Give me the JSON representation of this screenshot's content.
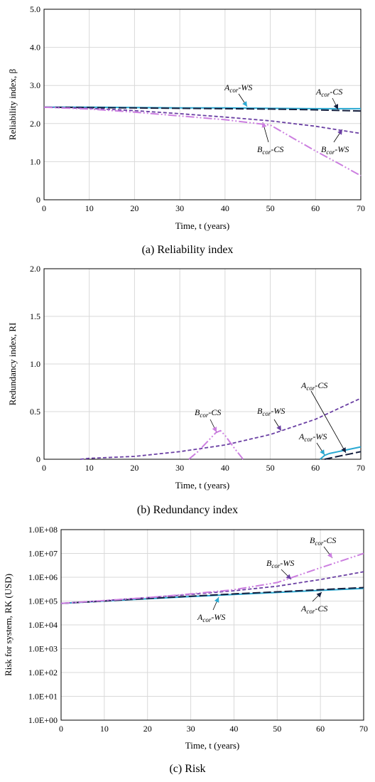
{
  "colors": {
    "A_cor_WS": "#2aa9d2",
    "A_cor_CS": "#14203f",
    "B_cor_WS": "#6a3fa3",
    "B_cor_CS": "#cc7fe0",
    "grid": "#d9d9d9",
    "axis": "#000000"
  },
  "chart_data": [
    {
      "type": "line",
      "caption": "(a) Reliability index",
      "xlabel": "Time, t (years)",
      "ylabel": "Reliability index, β",
      "xlim": [
        0,
        70
      ],
      "ylim": [
        0,
        5
      ],
      "xticks": [
        "0",
        "10",
        "20",
        "30",
        "40",
        "50",
        "60",
        "70"
      ],
      "yticks": [
        "0",
        "1.0",
        "2.0",
        "3.0",
        "4.0",
        "5.0"
      ],
      "grid": true,
      "series": [
        {
          "name": "A_cor-WS",
          "label_main": "A",
          "label_sub": "cor",
          "label_suffix": "-WS",
          "style": "solid",
          "x": [
            0,
            10,
            20,
            30,
            40,
            50,
            60,
            70
          ],
          "y": [
            2.43,
            2.43,
            2.42,
            2.41,
            2.41,
            2.4,
            2.39,
            2.39
          ]
        },
        {
          "name": "A_cor-CS",
          "label_main": "A",
          "label_sub": "cor",
          "label_suffix": "-CS",
          "style": "longdash",
          "x": [
            0,
            10,
            20,
            30,
            40,
            50,
            60,
            70
          ],
          "y": [
            2.43,
            2.42,
            2.41,
            2.4,
            2.39,
            2.38,
            2.36,
            2.33
          ]
        },
        {
          "name": "B_cor-WS",
          "label_main": "B",
          "label_sub": "cor",
          "label_suffix": "-WS",
          "style": "dash",
          "x": [
            0,
            10,
            20,
            30,
            40,
            50,
            60,
            70
          ],
          "y": [
            2.43,
            2.4,
            2.34,
            2.26,
            2.17,
            2.07,
            1.93,
            1.74
          ]
        },
        {
          "name": "B_cor-CS",
          "label_main": "B",
          "label_sub": "cor",
          "label_suffix": "-CS",
          "style": "dashdotdot",
          "x": [
            0,
            10,
            20,
            30,
            40,
            45,
            50,
            55,
            60,
            65,
            70
          ],
          "y": [
            2.43,
            2.38,
            2.3,
            2.2,
            2.1,
            2.03,
            1.96,
            1.62,
            1.28,
            0.96,
            0.63
          ]
        }
      ]
    },
    {
      "type": "line",
      "caption": "(b) Redundancy index",
      "xlabel": "Time, t (years)",
      "ylabel": "Redundancy index, RI",
      "xlim": [
        0,
        70
      ],
      "ylim": [
        0,
        2
      ],
      "xticks": [
        "0",
        "10",
        "20",
        "30",
        "40",
        "50",
        "60",
        "70"
      ],
      "yticks": [
        "0",
        "0.5",
        "1.0",
        "1.5",
        "2.0"
      ],
      "grid": true,
      "series": [
        {
          "name": "A_cor-WS",
          "label_main": "A",
          "label_sub": "cor",
          "label_suffix": "-WS",
          "style": "solid",
          "x": [
            61,
            62,
            63,
            65,
            67,
            70
          ],
          "y": [
            0.0,
            0.04,
            0.06,
            0.08,
            0.1,
            0.13
          ]
        },
        {
          "name": "A_cor-CS",
          "label_main": "A",
          "label_sub": "cor",
          "label_suffix": "-CS",
          "style": "longdash",
          "x": [
            62,
            64,
            66,
            68,
            70
          ],
          "y": [
            0.0,
            0.02,
            0.04,
            0.06,
            0.08
          ]
        },
        {
          "name": "B_cor-WS",
          "label_main": "B",
          "label_sub": "cor",
          "label_suffix": "-WS",
          "style": "dash",
          "x": [
            8,
            10,
            20,
            30,
            40,
            50,
            60,
            70
          ],
          "y": [
            0.0,
            0.01,
            0.03,
            0.08,
            0.15,
            0.26,
            0.42,
            0.64
          ]
        },
        {
          "name": "B_cor-CS",
          "label_main": "B",
          "label_sub": "cor",
          "label_suffix": "-CS",
          "style": "dashdotdot",
          "x": [
            32,
            34,
            36,
            38,
            39,
            40,
            42,
            44
          ],
          "y": [
            0.0,
            0.08,
            0.18,
            0.28,
            0.3,
            0.25,
            0.12,
            0.0
          ]
        }
      ]
    },
    {
      "type": "line",
      "caption": "(c) Risk",
      "xlabel": "Time, t (years)",
      "ylabel": "Risk for system, RK (USD)",
      "xlim": [
        0,
        70
      ],
      "ylim": [
        1,
        100000000
      ],
      "yscale": "log",
      "xticks": [
        "0",
        "10",
        "20",
        "30",
        "40",
        "50",
        "60",
        "70"
      ],
      "yticks": [
        "1.0E+00",
        "1.0E+01",
        "1.0E+02",
        "1.0E+03",
        "1.0E+04",
        "1.0E+05",
        "1.0E+06",
        "1.0E+07",
        "1.0E+08"
      ],
      "grid": true,
      "series": [
        {
          "name": "A_cor-WS",
          "label_main": "A",
          "label_sub": "cor",
          "label_suffix": "-WS",
          "style": "solid",
          "x": [
            0,
            10,
            20,
            30,
            40,
            50,
            60,
            70
          ],
          "y": [
            80000,
            100000,
            125000,
            155000,
            190000,
            230000,
            280000,
            340000
          ]
        },
        {
          "name": "A_cor-CS",
          "label_main": "A",
          "label_sub": "cor",
          "label_suffix": "-CS",
          "style": "longdash",
          "x": [
            0,
            10,
            20,
            30,
            40,
            50,
            60,
            70
          ],
          "y": [
            80000,
            100000,
            128000,
            160000,
            200000,
            245000,
            300000,
            370000
          ]
        },
        {
          "name": "B_cor-WS",
          "label_main": "B",
          "label_sub": "cor",
          "label_suffix": "-WS",
          "style": "dash",
          "x": [
            0,
            10,
            20,
            30,
            40,
            50,
            60,
            70
          ],
          "y": [
            80000,
            105000,
            140000,
            190000,
            270000,
            420000,
            800000,
            1700000
          ]
        },
        {
          "name": "B_cor-CS",
          "label_main": "B",
          "label_sub": "cor",
          "label_suffix": "-CS",
          "style": "dashdotdot",
          "x": [
            0,
            10,
            20,
            30,
            40,
            50,
            60,
            70
          ],
          "y": [
            80000,
            105000,
            140000,
            200000,
            300000,
            600000,
            2500000,
            10000000
          ]
        }
      ]
    }
  ]
}
